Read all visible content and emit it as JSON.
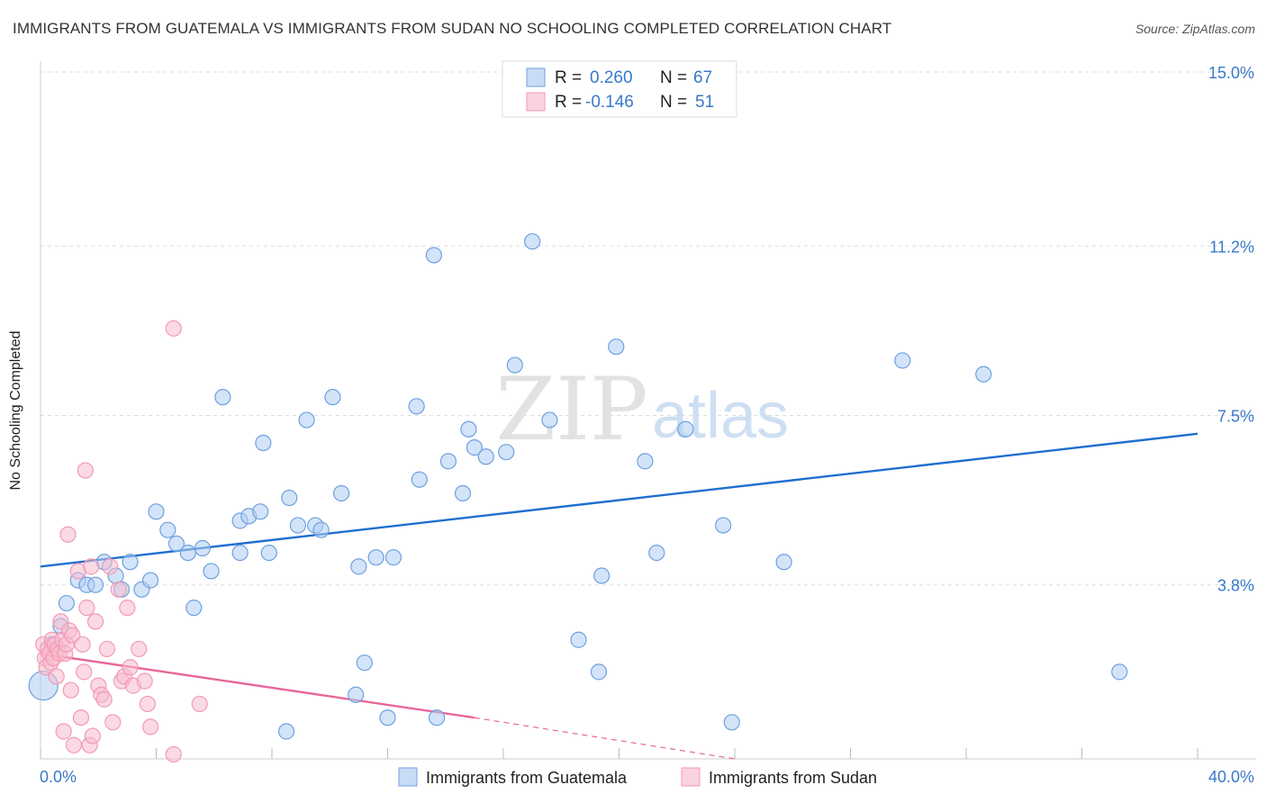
{
  "title": "IMMIGRANTS FROM GUATEMALA VS IMMIGRANTS FROM SUDAN NO SCHOOLING COMPLETED CORRELATION CHART",
  "source": "Source: ZipAtlas.com",
  "watermark": {
    "left": "ZIP",
    "right": "atlas"
  },
  "colors": {
    "blue": "#6fa0e0",
    "blue_line": "#1f6fd0",
    "pink": "#f29ab4",
    "pink_line": "#e8669a",
    "axis_label": "#3a78c9"
  },
  "legend": {
    "rows": [
      {
        "r_label": "R =",
        "r_value": "0.260",
        "n_label": "N =",
        "n_value": "67"
      },
      {
        "r_label": "R =",
        "r_value": "-0.146",
        "n_label": "N =",
        "n_value": "51"
      }
    ]
  },
  "bottom_legend": [
    "Immigrants from Guatemala",
    "Immigrants from Sudan"
  ],
  "chart_data": {
    "type": "scatter",
    "title": "IMMIGRANTS FROM GUATEMALA VS IMMIGRANTS FROM SUDAN NO SCHOOLING COMPLETED CORRELATION CHART",
    "xlabel": "",
    "ylabel": "No Schooling Completed",
    "xlim": [
      0,
      40
    ],
    "ylim": [
      0,
      15
    ],
    "x_tick_labels": [
      "0.0%",
      "40.0%"
    ],
    "y_tick_values": [
      3.8,
      7.5,
      11.2,
      15.0
    ],
    "y_tick_labels": [
      "3.8%",
      "7.5%",
      "11.2%",
      "15.0%"
    ],
    "grid": true,
    "legend_position": "top-center",
    "series": [
      {
        "name": "Immigrants from Guatemala",
        "color": "#6fa0e0",
        "r": 0.26,
        "n": 67,
        "trend": {
          "x": [
            0,
            40
          ],
          "y": [
            4.2,
            7.1
          ]
        },
        "points": [
          [
            0.1,
            1.6
          ],
          [
            0.4,
            2.5
          ],
          [
            0.7,
            2.9
          ],
          [
            0.9,
            3.4
          ],
          [
            1.3,
            3.9
          ],
          [
            1.6,
            3.8
          ],
          [
            1.9,
            3.8
          ],
          [
            2.2,
            4.3
          ],
          [
            2.6,
            4.0
          ],
          [
            2.8,
            3.7
          ],
          [
            3.1,
            4.3
          ],
          [
            3.5,
            3.7
          ],
          [
            3.8,
            3.9
          ],
          [
            4.0,
            5.4
          ],
          [
            4.4,
            5.0
          ],
          [
            4.7,
            4.7
          ],
          [
            5.1,
            4.5
          ],
          [
            5.3,
            3.3
          ],
          [
            5.6,
            4.6
          ],
          [
            5.9,
            4.1
          ],
          [
            6.3,
            7.9
          ],
          [
            6.9,
            5.2
          ],
          [
            6.9,
            4.5
          ],
          [
            7.2,
            5.3
          ],
          [
            7.6,
            5.4
          ],
          [
            7.7,
            6.9
          ],
          [
            7.9,
            4.5
          ],
          [
            8.5,
            0.6
          ],
          [
            8.6,
            5.7
          ],
          [
            8.9,
            5.1
          ],
          [
            9.2,
            7.4
          ],
          [
            9.5,
            5.1
          ],
          [
            9.7,
            5.0
          ],
          [
            10.1,
            7.9
          ],
          [
            10.4,
            5.8
          ],
          [
            10.9,
            1.4
          ],
          [
            11.0,
            4.2
          ],
          [
            11.2,
            2.1
          ],
          [
            11.6,
            4.4
          ],
          [
            12.0,
            0.9
          ],
          [
            12.2,
            4.4
          ],
          [
            13.0,
            7.7
          ],
          [
            13.1,
            6.1
          ],
          [
            13.6,
            11.0
          ],
          [
            13.7,
            0.9
          ],
          [
            14.1,
            6.5
          ],
          [
            14.6,
            5.8
          ],
          [
            14.8,
            7.2
          ],
          [
            15.0,
            6.8
          ],
          [
            15.4,
            6.6
          ],
          [
            16.1,
            6.7
          ],
          [
            16.4,
            8.6
          ],
          [
            17.0,
            11.3
          ],
          [
            17.6,
            7.4
          ],
          [
            18.6,
            2.6
          ],
          [
            19.3,
            1.9
          ],
          [
            19.4,
            4.0
          ],
          [
            19.9,
            9.0
          ],
          [
            20.9,
            6.5
          ],
          [
            21.3,
            4.5
          ],
          [
            22.3,
            7.2
          ],
          [
            23.6,
            5.1
          ],
          [
            23.9,
            0.8
          ],
          [
            25.7,
            4.3
          ],
          [
            29.8,
            8.7
          ],
          [
            32.6,
            8.4
          ],
          [
            37.3,
            1.9
          ]
        ]
      },
      {
        "name": "Immigrants from Sudan",
        "color": "#f29ab4",
        "r": -0.146,
        "n": 51,
        "trend": {
          "x": [
            0,
            15
          ],
          "y": [
            2.3,
            0.9
          ]
        },
        "trend_dashed": {
          "x": [
            15,
            24
          ],
          "y": [
            0.9,
            0.0
          ]
        },
        "points": [
          [
            0.1,
            2.5
          ],
          [
            0.15,
            2.2
          ],
          [
            0.2,
            2.0
          ],
          [
            0.25,
            2.4
          ],
          [
            0.3,
            2.3
          ],
          [
            0.35,
            2.1
          ],
          [
            0.4,
            2.6
          ],
          [
            0.45,
            2.2
          ],
          [
            0.5,
            2.5
          ],
          [
            0.55,
            1.8
          ],
          [
            0.6,
            2.4
          ],
          [
            0.65,
            2.3
          ],
          [
            0.7,
            3.0
          ],
          [
            0.75,
            2.6
          ],
          [
            0.8,
            0.6
          ],
          [
            0.85,
            2.3
          ],
          [
            0.9,
            2.5
          ],
          [
            0.95,
            4.9
          ],
          [
            1.0,
            2.8
          ],
          [
            1.05,
            1.5
          ],
          [
            1.1,
            2.7
          ],
          [
            1.15,
            0.3
          ],
          [
            1.3,
            4.1
          ],
          [
            1.4,
            0.9
          ],
          [
            1.45,
            2.5
          ],
          [
            1.5,
            1.9
          ],
          [
            1.55,
            6.3
          ],
          [
            1.6,
            3.3
          ],
          [
            1.7,
            0.3
          ],
          [
            1.75,
            4.2
          ],
          [
            1.8,
            0.5
          ],
          [
            1.9,
            3.0
          ],
          [
            2.0,
            1.6
          ],
          [
            2.1,
            1.4
          ],
          [
            2.2,
            1.3
          ],
          [
            2.3,
            2.4
          ],
          [
            2.4,
            4.2
          ],
          [
            2.5,
            0.8
          ],
          [
            2.7,
            3.7
          ],
          [
            2.8,
            1.7
          ],
          [
            2.9,
            1.8
          ],
          [
            3.0,
            3.3
          ],
          [
            3.1,
            2.0
          ],
          [
            3.2,
            1.6
          ],
          [
            3.4,
            2.4
          ],
          [
            3.6,
            1.7
          ],
          [
            3.7,
            1.2
          ],
          [
            3.8,
            0.7
          ],
          [
            4.6,
            0.1
          ],
          [
            4.6,
            9.4
          ],
          [
            5.5,
            1.2
          ]
        ]
      }
    ]
  }
}
